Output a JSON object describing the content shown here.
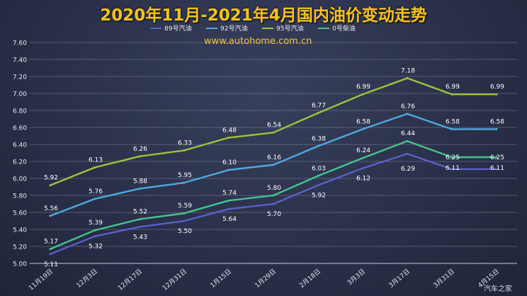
{
  "chart_data": {
    "type": "line",
    "title": "2020年11月-2021年4月国内油价变动走势",
    "watermark": "www.autohome.com.cn",
    "logo": "汽车之家",
    "xlabel": "",
    "ylabel": "",
    "categories": [
      "11月19日",
      "12月3日",
      "12月17日",
      "12月31日",
      "1月15日",
      "1月29日",
      "2月18日",
      "3月3日",
      "3月17日",
      "3月31日",
      "4月15日"
    ],
    "ylim": [
      5.0,
      7.6
    ],
    "yticks": [
      "5.00",
      "5.20",
      "5.40",
      "5.60",
      "5.80",
      "6.00",
      "6.20",
      "6.40",
      "6.60",
      "6.80",
      "7.00",
      "7.20",
      "7.40",
      "7.60"
    ],
    "grid": true,
    "legend_position": "top",
    "series": [
      {
        "name": "89号汽油",
        "color": "#5a5fc9",
        "values": [
          5.11,
          5.32,
          5.43,
          5.5,
          5.64,
          5.7,
          5.92,
          6.12,
          6.29,
          6.11,
          6.11
        ],
        "labels": [
          "5.11",
          "5.32",
          "5.43",
          "5.50",
          "5.64",
          "5.70",
          "5.92",
          "6.12",
          "6.29",
          "6.11",
          "6.11"
        ]
      },
      {
        "name": "92号汽油",
        "color": "#4fa9de",
        "values": [
          5.56,
          5.76,
          5.88,
          5.95,
          6.1,
          6.16,
          6.38,
          6.58,
          6.76,
          6.58,
          6.58
        ],
        "labels": [
          "5.56",
          "5.76",
          "5.88",
          "5.95",
          "6.10",
          "6.16",
          "6.38",
          "6.58",
          "6.76",
          "6.58",
          "6.58"
        ]
      },
      {
        "name": "95号汽油",
        "color": "#9dc33c",
        "values": [
          5.92,
          6.13,
          6.26,
          6.33,
          6.48,
          6.54,
          6.77,
          6.99,
          7.18,
          6.99,
          6.99
        ],
        "labels": [
          "5.92",
          "6.13",
          "6.26",
          "6.33",
          "6.48",
          "6.54",
          "6.77",
          "6.99",
          "7.18",
          "6.99",
          "6.99"
        ]
      },
      {
        "name": "0号柴油",
        "color": "#46c191",
        "values": [
          5.17,
          5.39,
          5.52,
          5.59,
          5.74,
          5.8,
          6.03,
          6.24,
          6.44,
          6.25,
          6.25
        ],
        "labels": [
          "5.17",
          "5.39",
          "5.52",
          "5.59",
          "5.74",
          "5.80",
          "6.03",
          "6.24",
          "6.44",
          "6.25",
          "6.25"
        ]
      }
    ]
  }
}
